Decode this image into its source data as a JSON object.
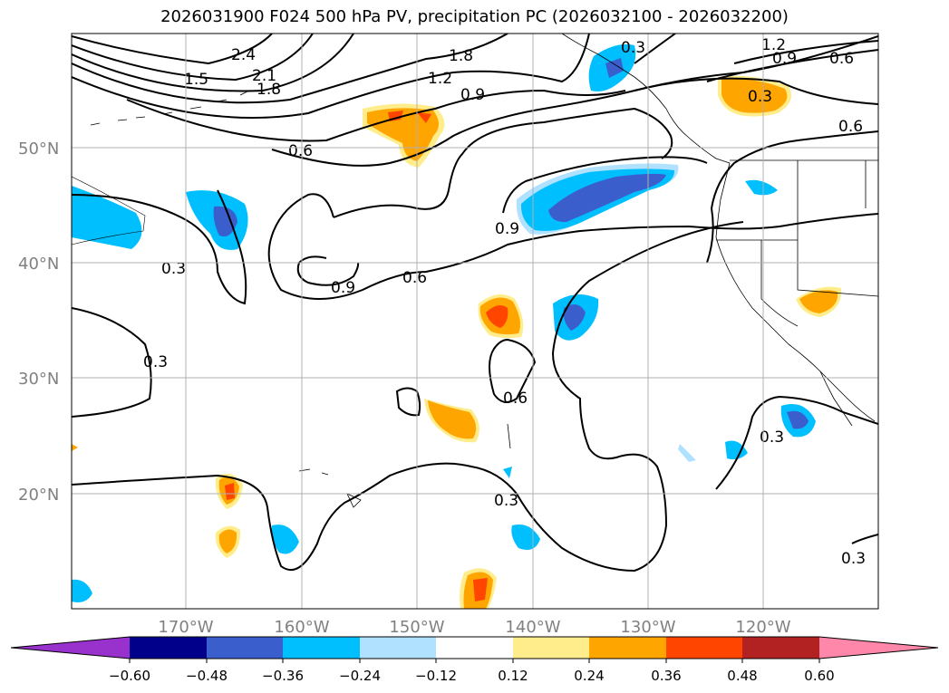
{
  "title": "2026031900 F024 500 hPa PV, precipitation PC (2026032100 - 2026032200)",
  "lat_labels": [
    "50°N",
    "40°N",
    "30°N",
    "20°N"
  ],
  "lon_labels": [
    "170°W",
    "160°W",
    "150°W",
    "140°W",
    "130°W",
    "120°W"
  ],
  "contour_labels": [
    "2.4",
    "2.1",
    "1.8",
    "1.5",
    "1.8",
    "1.2",
    "0.9",
    "0.6",
    "0.3",
    "0.9",
    "0.6",
    "0.3",
    "1.2",
    "0.9",
    "0.6",
    "0.3",
    "0.9",
    "0.6",
    "0.3",
    "0.3",
    "0.6",
    "0.3",
    "0.3"
  ],
  "colorbar": {
    "ticks": [
      "−0.60",
      "−0.48",
      "−0.36",
      "−0.24",
      "−0.12",
      "0.12",
      "0.24",
      "0.36",
      "0.48",
      "0.60"
    ],
    "colors": {
      "under": "#9932cc",
      "bins": [
        "#00008b",
        "#3a5fcd",
        "#00bfff",
        "#b0e2ff",
        "#ffffff",
        "#ffec8b",
        "#ffa500",
        "#ff4500",
        "#b22222"
      ],
      "over": "#ff88aa"
    }
  },
  "chart_data": {
    "type": "map",
    "projection": "cylindrical",
    "lon_range": [
      -180,
      -110
    ],
    "lat_range": [
      10,
      60
    ],
    "gridlines": true,
    "lat_ticks": [
      50,
      40,
      30,
      20
    ],
    "lon_ticks": [
      -170,
      -160,
      -150,
      -140,
      -130,
      -120
    ],
    "colorbar_levels": [
      -0.6,
      -0.48,
      -0.36,
      -0.24,
      -0.12,
      0.12,
      0.24,
      0.36,
      0.48,
      0.6
    ]
  }
}
